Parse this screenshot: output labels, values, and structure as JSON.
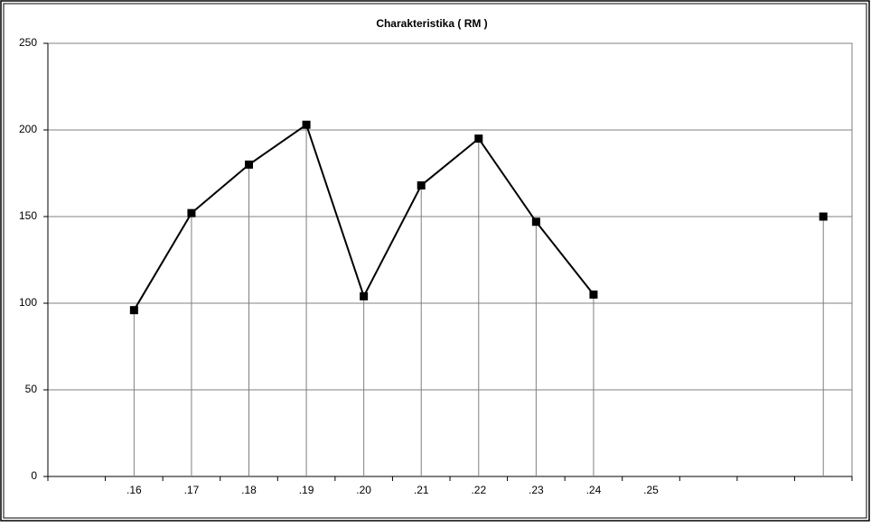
{
  "chart_data": {
    "type": "line",
    "title": "Charakteristika ( RM )",
    "categories": [
      null,
      ".16",
      ".17",
      ".18",
      ".19",
      ".20",
      ".21",
      ".22",
      ".23",
      ".24",
      ".25",
      null,
      null,
      null
    ],
    "series": [
      {
        "color": "#000000",
        "values": [
          null,
          96,
          152,
          180,
          203,
          104,
          168,
          195,
          147,
          105,
          null,
          null,
          null,
          150
        ]
      }
    ],
    "ylim": [
      0,
      250
    ],
    "yticks": [
      0,
      50,
      100,
      150,
      200,
      250
    ],
    "grid": true,
    "drop_lines": true
  }
}
